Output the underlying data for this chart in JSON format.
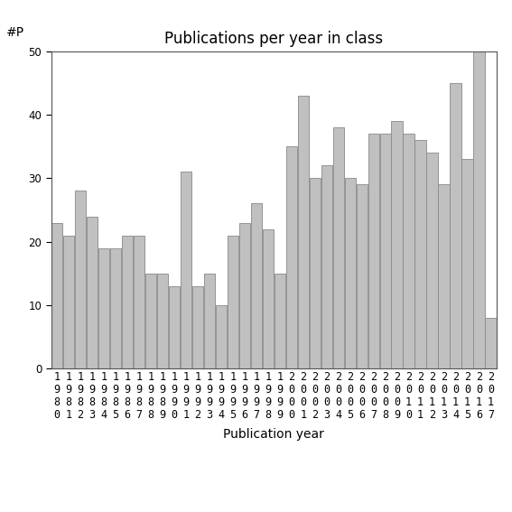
{
  "title": "Publications per year in class",
  "xlabel": "Publication year",
  "ylabel": "#P",
  "years": [
    "1980",
    "1981",
    "1982",
    "1983",
    "1984",
    "1985",
    "1986",
    "1987",
    "1988",
    "1989",
    "1990",
    "1991",
    "1992",
    "1993",
    "1994",
    "1995",
    "1996",
    "1997",
    "1998",
    "1999",
    "2000",
    "2001",
    "2002",
    "2003",
    "2004",
    "2005",
    "2006",
    "2007",
    "2008",
    "2009",
    "2010",
    "2011",
    "2012",
    "2013",
    "2014",
    "2015",
    "2016",
    "2017"
  ],
  "values": [
    23,
    21,
    28,
    24,
    19,
    19,
    21,
    21,
    15,
    15,
    13,
    31,
    13,
    15,
    10,
    21,
    23,
    26,
    22,
    15,
    35,
    43,
    30,
    32,
    38,
    30,
    29,
    37,
    37,
    39,
    37,
    36,
    34,
    29,
    45,
    33,
    50,
    8
  ],
  "bar_color": "#c0c0c0",
  "bar_edgecolor": "#888888",
  "ylim": [
    0,
    50
  ],
  "yticks": [
    0,
    10,
    20,
    30,
    40,
    50
  ],
  "title_fontsize": 12,
  "label_fontsize": 10,
  "tick_fontsize": 8.5,
  "background_color": "#ffffff"
}
